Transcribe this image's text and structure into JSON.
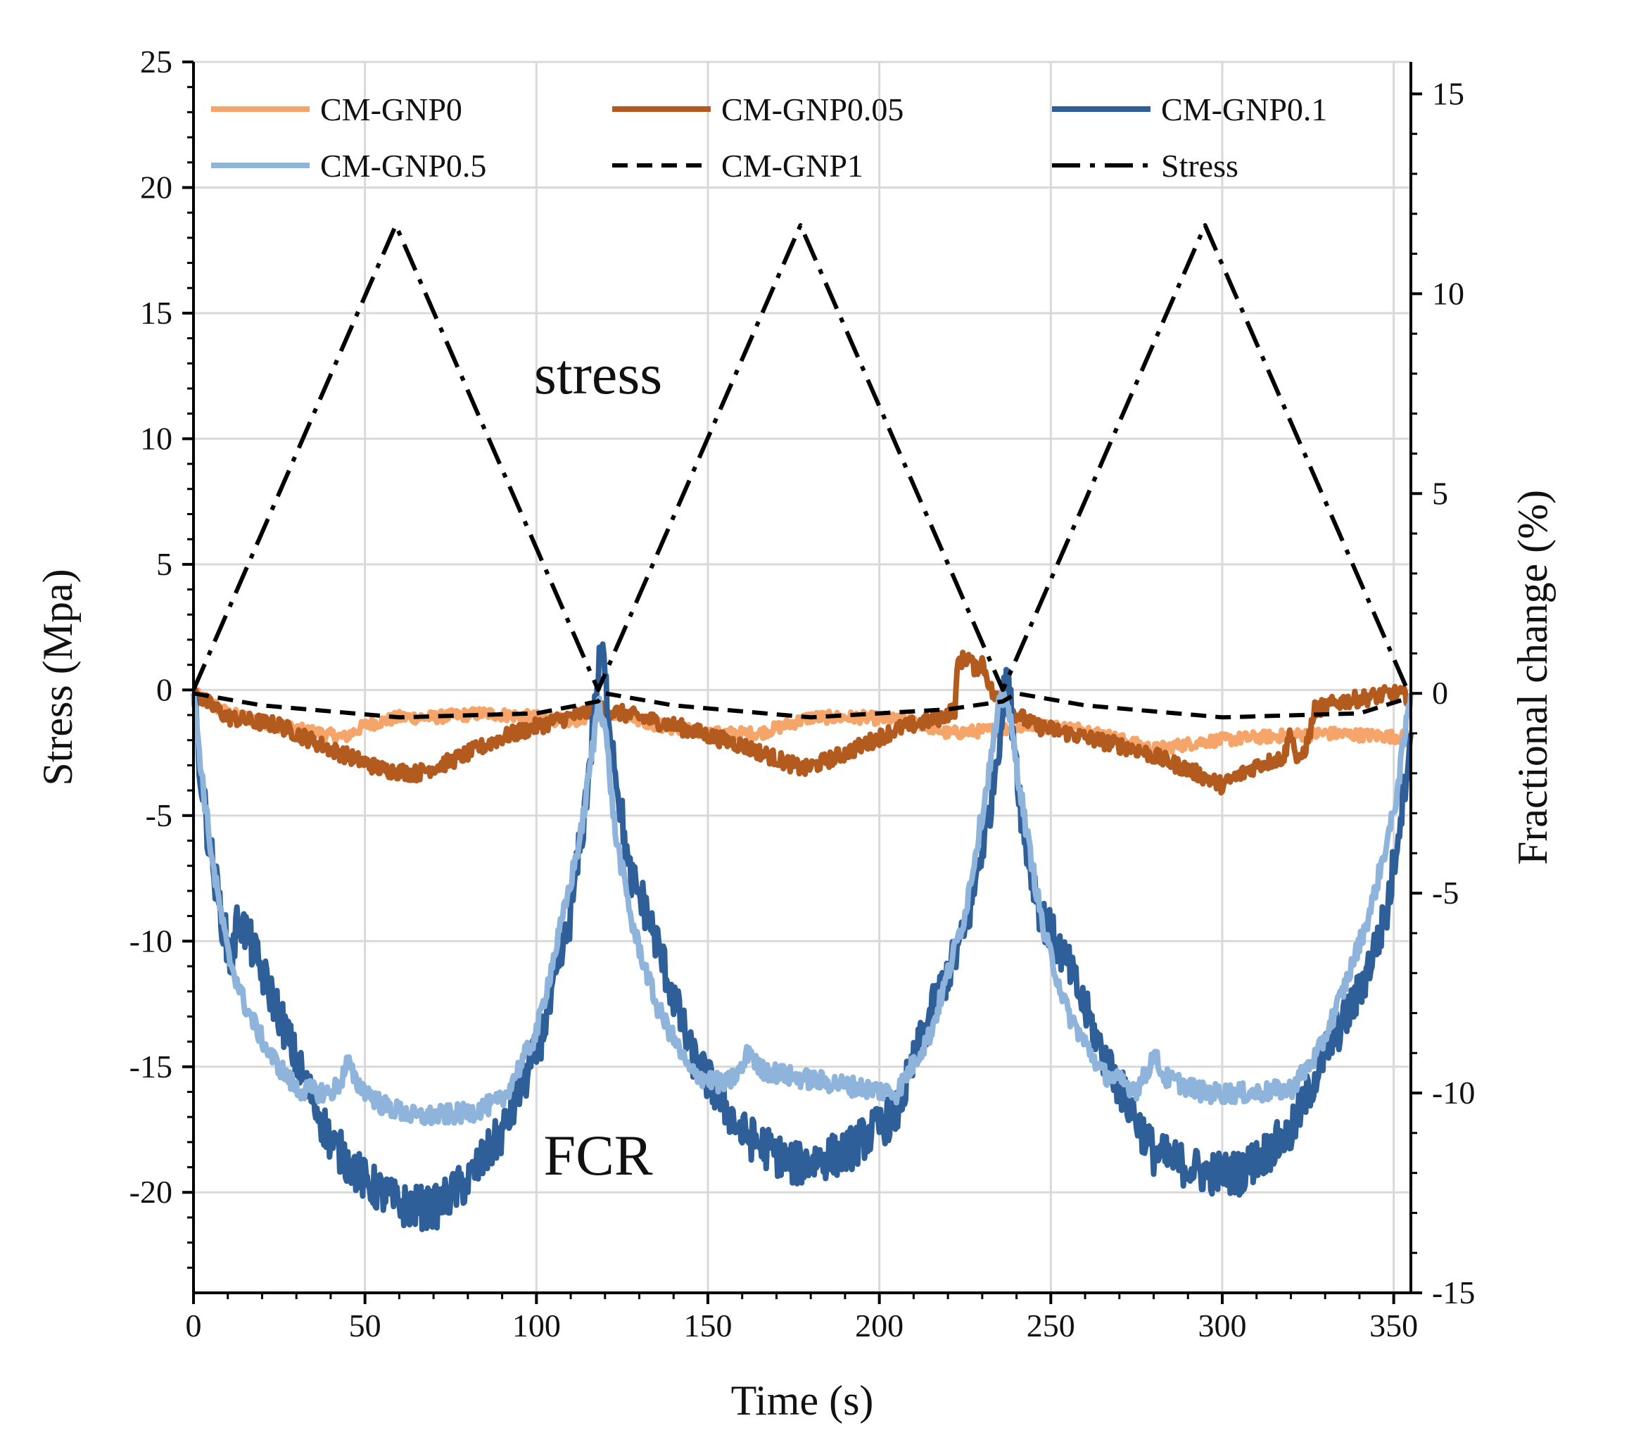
{
  "chart_data": {
    "type": "line",
    "title": "",
    "xlabel": "Time (s)",
    "ylabel": "Stress (Mpa)",
    "y2label": "Fractional change (%)",
    "xlim": [
      0,
      355
    ],
    "ylim": [
      -24,
      25
    ],
    "y2lim": [
      -15,
      15.8
    ],
    "xticks": [
      0,
      50,
      100,
      150,
      200,
      250,
      300,
      350
    ],
    "yticks": [
      25,
      20,
      15,
      10,
      5,
      0,
      -5,
      -10,
      -15,
      -20
    ],
    "y2ticks": [
      15,
      10,
      5,
      0,
      -5,
      -10,
      -15
    ],
    "ytick_labels": [
      "25",
      "20",
      "15",
      "10",
      "5",
      "0",
      "-5",
      "-10",
      "-15",
      "-20"
    ],
    "y2tick_labels": [
      "15",
      "10",
      "5",
      "0",
      "-5",
      "-10",
      "-15"
    ],
    "grid": true,
    "legend": "top",
    "annotations": [
      {
        "text": "stress",
        "x": 118,
        "y": 11.8
      },
      {
        "text": "FCR",
        "x": 118,
        "y": -19.3
      }
    ],
    "series": [
      {
        "name": "CM-GNP0",
        "axis": "right",
        "color": "#F5A46A",
        "style": "solid",
        "noise": 0.15,
        "points": [
          [
            0,
            0
          ],
          [
            10,
            -0.5
          ],
          [
            30,
            -0.9
          ],
          [
            44,
            -1.1
          ],
          [
            50,
            -0.8
          ],
          [
            60,
            -0.6
          ],
          [
            70,
            -0.6
          ],
          [
            85,
            -0.5
          ],
          [
            100,
            -0.6
          ],
          [
            110,
            -0.7
          ],
          [
            118,
            -0.5
          ],
          [
            125,
            -0.5
          ],
          [
            135,
            -0.8
          ],
          [
            150,
            -1.0
          ],
          [
            165,
            -1.0
          ],
          [
            180,
            -0.6
          ],
          [
            195,
            -0.6
          ],
          [
            210,
            -0.7
          ],
          [
            220,
            -1.0
          ],
          [
            236,
            -0.9
          ],
          [
            245,
            -0.8
          ],
          [
            260,
            -0.9
          ],
          [
            280,
            -1.4
          ],
          [
            295,
            -1.2
          ],
          [
            310,
            -1.1
          ],
          [
            330,
            -1.0
          ],
          [
            355,
            -1.1
          ]
        ]
      },
      {
        "name": "CM-GNP0.05",
        "axis": "right",
        "color": "#B35A1F",
        "style": "solid",
        "noise": 0.2,
        "points": [
          [
            0,
            0
          ],
          [
            10,
            -0.6
          ],
          [
            25,
            -0.8
          ],
          [
            40,
            -1.4
          ],
          [
            55,
            -1.9
          ],
          [
            65,
            -2.0
          ],
          [
            75,
            -1.7
          ],
          [
            90,
            -1.1
          ],
          [
            105,
            -0.7
          ],
          [
            118,
            -0.4
          ],
          [
            125,
            -0.5
          ],
          [
            140,
            -0.8
          ],
          [
            160,
            -1.3
          ],
          [
            178,
            -1.9
          ],
          [
            190,
            -1.5
          ],
          [
            205,
            -0.9
          ],
          [
            218,
            -0.6
          ],
          [
            222,
            -0.4
          ],
          [
            223,
            0.8
          ],
          [
            226,
            0.9
          ],
          [
            228,
            0.6
          ],
          [
            230,
            0.8
          ],
          [
            233,
            0.0
          ],
          [
            236,
            -0.3
          ],
          [
            245,
            -0.8
          ],
          [
            260,
            -1.1
          ],
          [
            275,
            -1.4
          ],
          [
            290,
            -1.9
          ],
          [
            300,
            -2.3
          ],
          [
            310,
            -1.8
          ],
          [
            318,
            -1.6
          ],
          [
            320,
            -0.9
          ],
          [
            322,
            -1.8
          ],
          [
            325,
            -1.2
          ],
          [
            327,
            -0.4
          ],
          [
            335,
            -0.2
          ],
          [
            350,
            0.0
          ],
          [
            355,
            -0.1
          ]
        ]
      },
      {
        "name": "CM-GNP0.1",
        "axis": "right",
        "color": "#2E5F98",
        "style": "solid",
        "noise": 0.55,
        "points": [
          [
            0,
            0
          ],
          [
            2,
            -2.0
          ],
          [
            5,
            -4.0
          ],
          [
            8,
            -5.5
          ],
          [
            11,
            -6.8
          ],
          [
            13,
            -5.6
          ],
          [
            16,
            -6.1
          ],
          [
            20,
            -7.0
          ],
          [
            25,
            -8.0
          ],
          [
            30,
            -9.2
          ],
          [
            40,
            -11.2
          ],
          [
            50,
            -12.2
          ],
          [
            60,
            -12.8
          ],
          [
            70,
            -12.9
          ],
          [
            80,
            -12.2
          ],
          [
            90,
            -11.0
          ],
          [
            100,
            -9.0
          ],
          [
            105,
            -7.5
          ],
          [
            110,
            -5.5
          ],
          [
            114,
            -3.0
          ],
          [
            117,
            -0.5
          ],
          [
            119,
            1.2
          ],
          [
            121,
            -0.5
          ],
          [
            124,
            -2.5
          ],
          [
            127,
            -4.5
          ],
          [
            131,
            -5.2
          ],
          [
            135,
            -6.2
          ],
          [
            145,
            -9.0
          ],
          [
            160,
            -11.0
          ],
          [
            175,
            -11.8
          ],
          [
            190,
            -11.5
          ],
          [
            205,
            -10.5
          ],
          [
            215,
            -8.0
          ],
          [
            225,
            -6.0
          ],
          [
            232,
            -3.0
          ],
          [
            236,
            -0.4
          ],
          [
            237,
            0.5
          ],
          [
            239,
            -0.8
          ],
          [
            242,
            -3.5
          ],
          [
            247,
            -5.5
          ],
          [
            255,
            -6.8
          ],
          [
            265,
            -9.0
          ],
          [
            280,
            -11.5
          ],
          [
            295,
            -12.0
          ],
          [
            305,
            -12.0
          ],
          [
            320,
            -11.0
          ],
          [
            330,
            -9.0
          ],
          [
            340,
            -7.5
          ],
          [
            348,
            -5.5
          ],
          [
            352,
            -3.0
          ],
          [
            355,
            -1.0
          ]
        ]
      },
      {
        "name": "CM-GNP0.5",
        "axis": "right",
        "color": "#8FB4DC",
        "style": "solid",
        "noise": 0.25,
        "points": [
          [
            0,
            0
          ],
          [
            3,
            -2.5
          ],
          [
            6,
            -4.5
          ],
          [
            10,
            -6.5
          ],
          [
            15,
            -7.8
          ],
          [
            22,
            -9.0
          ],
          [
            30,
            -9.9
          ],
          [
            40,
            -10.0
          ],
          [
            43,
            -9.7
          ],
          [
            45,
            -9.2
          ],
          [
            47,
            -9.7
          ],
          [
            55,
            -10.3
          ],
          [
            65,
            -10.6
          ],
          [
            80,
            -10.5
          ],
          [
            90,
            -10.2
          ],
          [
            100,
            -8.5
          ],
          [
            108,
            -5.5
          ],
          [
            113,
            -3.5
          ],
          [
            117,
            -1.0
          ],
          [
            118,
            -0.1
          ],
          [
            120,
            -0.8
          ],
          [
            123,
            -3.5
          ],
          [
            128,
            -5.8
          ],
          [
            135,
            -7.8
          ],
          [
            145,
            -9.5
          ],
          [
            155,
            -9.8
          ],
          [
            160,
            -9.4
          ],
          [
            162,
            -8.9
          ],
          [
            165,
            -9.4
          ],
          [
            175,
            -9.6
          ],
          [
            190,
            -9.8
          ],
          [
            205,
            -10.0
          ],
          [
            215,
            -8.5
          ],
          [
            225,
            -5.5
          ],
          [
            231,
            -2.5
          ],
          [
            235,
            -0.3
          ],
          [
            237,
            0.0
          ],
          [
            239,
            -1.2
          ],
          [
            243,
            -3.5
          ],
          [
            248,
            -6.0
          ],
          [
            255,
            -8.0
          ],
          [
            265,
            -9.5
          ],
          [
            275,
            -9.9
          ],
          [
            278,
            -9.5
          ],
          [
            280,
            -9.0
          ],
          [
            283,
            -9.6
          ],
          [
            295,
            -10.0
          ],
          [
            310,
            -10.0
          ],
          [
            320,
            -9.9
          ],
          [
            328,
            -9.0
          ],
          [
            335,
            -7.5
          ],
          [
            343,
            -5.5
          ],
          [
            350,
            -3.0
          ],
          [
            355,
            0.0
          ]
        ]
      },
      {
        "name": "CM-GNP1",
        "axis": "right",
        "color": "#000000",
        "style": "dash",
        "noise": 0,
        "points": [
          [
            0,
            0
          ],
          [
            20,
            -0.3
          ],
          [
            60,
            -0.6
          ],
          [
            100,
            -0.5
          ],
          [
            118,
            -0.2
          ],
          [
            120,
            0.0
          ],
          [
            140,
            -0.3
          ],
          [
            180,
            -0.6
          ],
          [
            220,
            -0.4
          ],
          [
            236,
            -0.2
          ],
          [
            240,
            0.0
          ],
          [
            260,
            -0.3
          ],
          [
            300,
            -0.6
          ],
          [
            340,
            -0.5
          ],
          [
            355,
            -0.1
          ]
        ]
      },
      {
        "name": "Stress",
        "axis": "left",
        "color": "#000000",
        "style": "dashdot",
        "noise": 0,
        "points": [
          [
            0,
            0
          ],
          [
            59,
            18.5
          ],
          [
            118,
            0
          ],
          [
            177,
            18.5
          ],
          [
            236,
            0
          ],
          [
            295,
            18.5
          ],
          [
            354,
            0
          ]
        ]
      }
    ]
  }
}
